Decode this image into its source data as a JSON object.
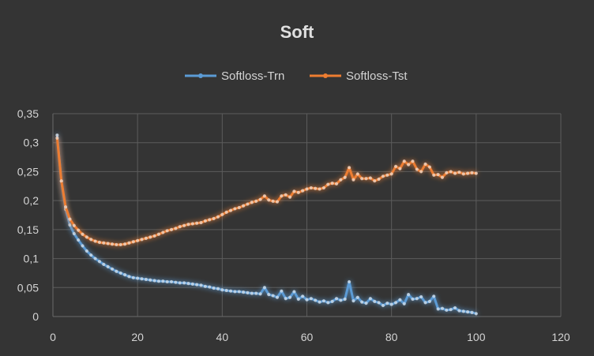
{
  "colors": {
    "background": "#343434",
    "train": "#5b9bd5",
    "test": "#ed7d31",
    "grid": "#5c5c5c",
    "text": "#d4d4d4"
  },
  "chart_data": {
    "type": "line",
    "title": "Soft",
    "xlabel": "",
    "ylabel": "",
    "xlim": [
      0,
      120
    ],
    "ylim": [
      0,
      0.35
    ],
    "x_ticks": [
      0,
      20,
      40,
      60,
      80,
      100,
      120
    ],
    "y_ticks": [
      0,
      0.05,
      0.1,
      0.15,
      0.2,
      0.25,
      0.3,
      0.35
    ],
    "x_tick_labels": [
      "0",
      "20",
      "40",
      "60",
      "80",
      "100",
      "120"
    ],
    "y_tick_labels": [
      "0",
      "0,05",
      "0,1",
      "0,15",
      "0,2",
      "0,25",
      "0,3",
      "0,35"
    ],
    "grid": true,
    "legend_position": "top-center",
    "series": [
      {
        "name": "Softloss-Trn",
        "color": "#5b9bd5",
        "x": [
          1,
          2,
          3,
          4,
          5,
          6,
          7,
          8,
          9,
          10,
          11,
          12,
          13,
          14,
          15,
          16,
          17,
          18,
          19,
          20,
          21,
          22,
          23,
          24,
          25,
          26,
          27,
          28,
          29,
          30,
          31,
          32,
          33,
          34,
          35,
          36,
          37,
          38,
          39,
          40,
          41,
          42,
          43,
          44,
          45,
          46,
          47,
          48,
          49,
          50,
          51,
          52,
          53,
          54,
          55,
          56,
          57,
          58,
          59,
          60,
          61,
          62,
          63,
          64,
          65,
          66,
          67,
          68,
          69,
          70,
          71,
          72,
          73,
          74,
          75,
          76,
          77,
          78,
          79,
          80,
          81,
          82,
          83,
          84,
          85,
          86,
          87,
          88,
          89,
          90,
          91,
          92,
          93,
          94,
          95,
          96,
          97,
          98,
          99,
          100
        ],
        "values": [
          0.313,
          0.233,
          0.185,
          0.158,
          0.143,
          0.132,
          0.122,
          0.113,
          0.106,
          0.1,
          0.095,
          0.09,
          0.086,
          0.082,
          0.078,
          0.075,
          0.072,
          0.069,
          0.067,
          0.066,
          0.065,
          0.064,
          0.063,
          0.062,
          0.061,
          0.061,
          0.06,
          0.06,
          0.059,
          0.058,
          0.058,
          0.057,
          0.056,
          0.055,
          0.054,
          0.052,
          0.051,
          0.049,
          0.048,
          0.046,
          0.045,
          0.044,
          0.043,
          0.043,
          0.042,
          0.041,
          0.04,
          0.04,
          0.039,
          0.05,
          0.038,
          0.036,
          0.033,
          0.044,
          0.031,
          0.033,
          0.043,
          0.03,
          0.035,
          0.029,
          0.031,
          0.028,
          0.025,
          0.027,
          0.024,
          0.026,
          0.031,
          0.028,
          0.03,
          0.06,
          0.027,
          0.033,
          0.025,
          0.023,
          0.031,
          0.026,
          0.024,
          0.019,
          0.023,
          0.021,
          0.024,
          0.029,
          0.022,
          0.038,
          0.03,
          0.031,
          0.034,
          0.024,
          0.026,
          0.035,
          0.013,
          0.014,
          0.011,
          0.012,
          0.015,
          0.01,
          0.009,
          0.008,
          0.007,
          0.005
        ]
      },
      {
        "name": "Softloss-Tst",
        "color": "#ed7d31",
        "x": [
          1,
          2,
          3,
          4,
          5,
          6,
          7,
          8,
          9,
          10,
          11,
          12,
          13,
          14,
          15,
          16,
          17,
          18,
          19,
          20,
          21,
          22,
          23,
          24,
          25,
          26,
          27,
          28,
          29,
          30,
          31,
          32,
          33,
          34,
          35,
          36,
          37,
          38,
          39,
          40,
          41,
          42,
          43,
          44,
          45,
          46,
          47,
          48,
          49,
          50,
          51,
          52,
          53,
          54,
          55,
          56,
          57,
          58,
          59,
          60,
          61,
          62,
          63,
          64,
          65,
          66,
          67,
          68,
          69,
          70,
          71,
          72,
          73,
          74,
          75,
          76,
          77,
          78,
          79,
          80,
          81,
          82,
          83,
          84,
          85,
          86,
          87,
          88,
          89,
          90,
          91,
          92,
          93,
          94,
          95,
          96,
          97,
          98,
          99,
          100
        ],
        "values": [
          0.308,
          0.234,
          0.189,
          0.168,
          0.157,
          0.149,
          0.142,
          0.137,
          0.133,
          0.13,
          0.128,
          0.127,
          0.126,
          0.125,
          0.124,
          0.124,
          0.125,
          0.127,
          0.129,
          0.131,
          0.133,
          0.135,
          0.137,
          0.139,
          0.142,
          0.145,
          0.148,
          0.15,
          0.152,
          0.155,
          0.157,
          0.159,
          0.16,
          0.161,
          0.162,
          0.165,
          0.167,
          0.169,
          0.172,
          0.176,
          0.18,
          0.183,
          0.186,
          0.188,
          0.191,
          0.194,
          0.197,
          0.199,
          0.202,
          0.208,
          0.201,
          0.199,
          0.198,
          0.208,
          0.21,
          0.206,
          0.216,
          0.214,
          0.217,
          0.22,
          0.222,
          0.221,
          0.22,
          0.222,
          0.228,
          0.23,
          0.229,
          0.236,
          0.24,
          0.257,
          0.236,
          0.246,
          0.238,
          0.238,
          0.239,
          0.234,
          0.237,
          0.242,
          0.244,
          0.246,
          0.259,
          0.255,
          0.268,
          0.262,
          0.268,
          0.254,
          0.25,
          0.263,
          0.258,
          0.244,
          0.245,
          0.24,
          0.248,
          0.25,
          0.247,
          0.249,
          0.246,
          0.247,
          0.248,
          0.247
        ]
      }
    ]
  }
}
